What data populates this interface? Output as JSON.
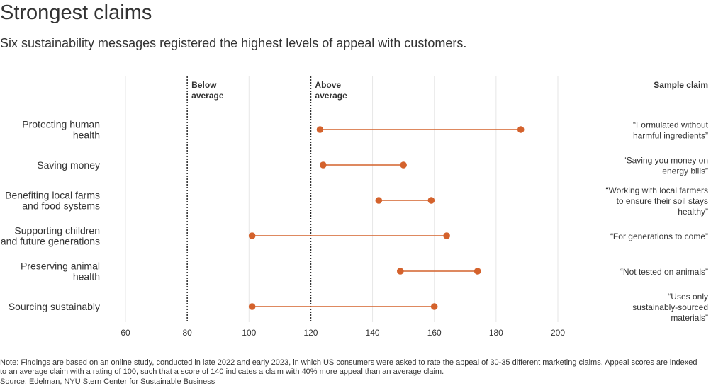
{
  "title": "Strongest claims",
  "subtitle": "Six sustainability messages registered the highest levels of appeal with customers.",
  "colors": {
    "marker": "#d4622c",
    "text": "#333333",
    "grid": "#e6e6e6",
    "reference_line": "#333333"
  },
  "chart_data": {
    "type": "dumbbell",
    "xlim": [
      60,
      200
    ],
    "xticks": [
      60,
      80,
      100,
      120,
      140,
      160,
      180,
      200
    ],
    "reference_lines": [
      {
        "value": 80,
        "label": [
          "Below",
          "average"
        ]
      },
      {
        "value": 120,
        "label": [
          "Above",
          "average"
        ]
      }
    ],
    "sample_claim_header": "Sample claim",
    "categories": [
      {
        "label": [
          "Protecting human",
          "health"
        ],
        "low": 123,
        "high": 188,
        "sample_claim": [
          "“Formulated without",
          "harmful ingredients”"
        ]
      },
      {
        "label": [
          "Saving money"
        ],
        "low": 124,
        "high": 150,
        "sample_claim": [
          "“Saving you money on",
          "energy bills”"
        ]
      },
      {
        "label": [
          "Benefiting local farms",
          "and food systems"
        ],
        "low": 142,
        "high": 159,
        "sample_claim": [
          "“Working with local farmers",
          "to ensure their soil stays",
          "healthy”"
        ]
      },
      {
        "label": [
          "Supporting children",
          "and future generations"
        ],
        "low": 101,
        "high": 164,
        "sample_claim": [
          "“For generations to come”"
        ]
      },
      {
        "label": [
          "Preserving animal",
          "health"
        ],
        "low": 149,
        "high": 174,
        "sample_claim": [
          "“Not tested on animals”"
        ]
      },
      {
        "label": [
          "Sourcing sustainably"
        ],
        "low": 101,
        "high": 160,
        "sample_claim": [
          "“Uses only",
          "sustainably-sourced",
          "materials”"
        ]
      }
    ]
  },
  "notes": {
    "note_line1": "Note: Findings are based on an online study, conducted in late 2022 and early 2023, in which US consumers were asked to rate the appeal of 30-35 different marketing claims. Appeal scores are indexed",
    "note_line2": "to an average claim with a rating of 100, such that a score of 140 indicates a claim with 40% more appeal than an average claim.",
    "source": "Source: Edelman, NYU Stern Center for Sustainable Business"
  }
}
